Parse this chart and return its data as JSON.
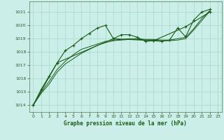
{
  "title": "Graphe pression niveau de la mer (hPa)",
  "background_color": "#cceee8",
  "grid_color": "#aaddcc",
  "line_color": "#1a5c1a",
  "marker_color": "#1a5c1a",
  "xlim": [
    -0.5,
    23.5
  ],
  "ylim": [
    1013.5,
    1021.8
  ],
  "yticks": [
    1014,
    1015,
    1016,
    1017,
    1018,
    1019,
    1020,
    1021
  ],
  "xticks": [
    0,
    1,
    2,
    3,
    4,
    5,
    6,
    7,
    8,
    9,
    10,
    11,
    12,
    13,
    14,
    15,
    16,
    17,
    18,
    19,
    20,
    21,
    22,
    23
  ],
  "line1_x": [
    0,
    1,
    2,
    3,
    4,
    5,
    6,
    7,
    8,
    9,
    10,
    11,
    12,
    13,
    14,
    15,
    16,
    17,
    18,
    19,
    20,
    21,
    22
  ],
  "line1_y": [
    1014.0,
    1015.2,
    1016.2,
    1017.2,
    1018.1,
    1018.5,
    1019.0,
    1019.4,
    1019.8,
    1020.0,
    1019.0,
    1019.3,
    1019.3,
    1019.1,
    1018.8,
    1018.85,
    1018.8,
    1018.9,
    1019.8,
    1019.15,
    1020.4,
    1021.0,
    1021.2
  ],
  "line2_x": [
    0,
    1,
    2,
    3,
    4,
    5,
    6,
    7,
    8,
    9,
    10,
    11,
    12,
    13,
    14,
    15,
    16,
    17,
    18,
    19,
    20,
    21,
    22
  ],
  "line2_y": [
    1014.0,
    1014.9,
    1015.6,
    1016.5,
    1017.1,
    1017.5,
    1017.9,
    1018.2,
    1018.5,
    1018.7,
    1018.85,
    1018.9,
    1018.95,
    1018.95,
    1018.9,
    1018.9,
    1018.85,
    1018.85,
    1018.9,
    1019.0,
    1019.65,
    1020.35,
    1021.05
  ],
  "line3_x": [
    0,
    1,
    2,
    3,
    4,
    5,
    6,
    7,
    8,
    9,
    10,
    11,
    12,
    13,
    14,
    15,
    16,
    17,
    18,
    19,
    20,
    21,
    22
  ],
  "line3_y": [
    1014.0,
    1015.0,
    1015.8,
    1016.7,
    1017.3,
    1017.8,
    1018.2,
    1018.4,
    1018.6,
    1018.8,
    1018.9,
    1018.95,
    1019.0,
    1019.0,
    1018.95,
    1018.95,
    1018.9,
    1018.9,
    1019.0,
    1019.1,
    1019.75,
    1020.5,
    1021.1
  ],
  "line4_x": [
    0,
    3,
    10,
    15,
    19,
    22
  ],
  "line4_y": [
    1014.0,
    1017.2,
    1019.0,
    1018.85,
    1019.9,
    1021.0
  ]
}
